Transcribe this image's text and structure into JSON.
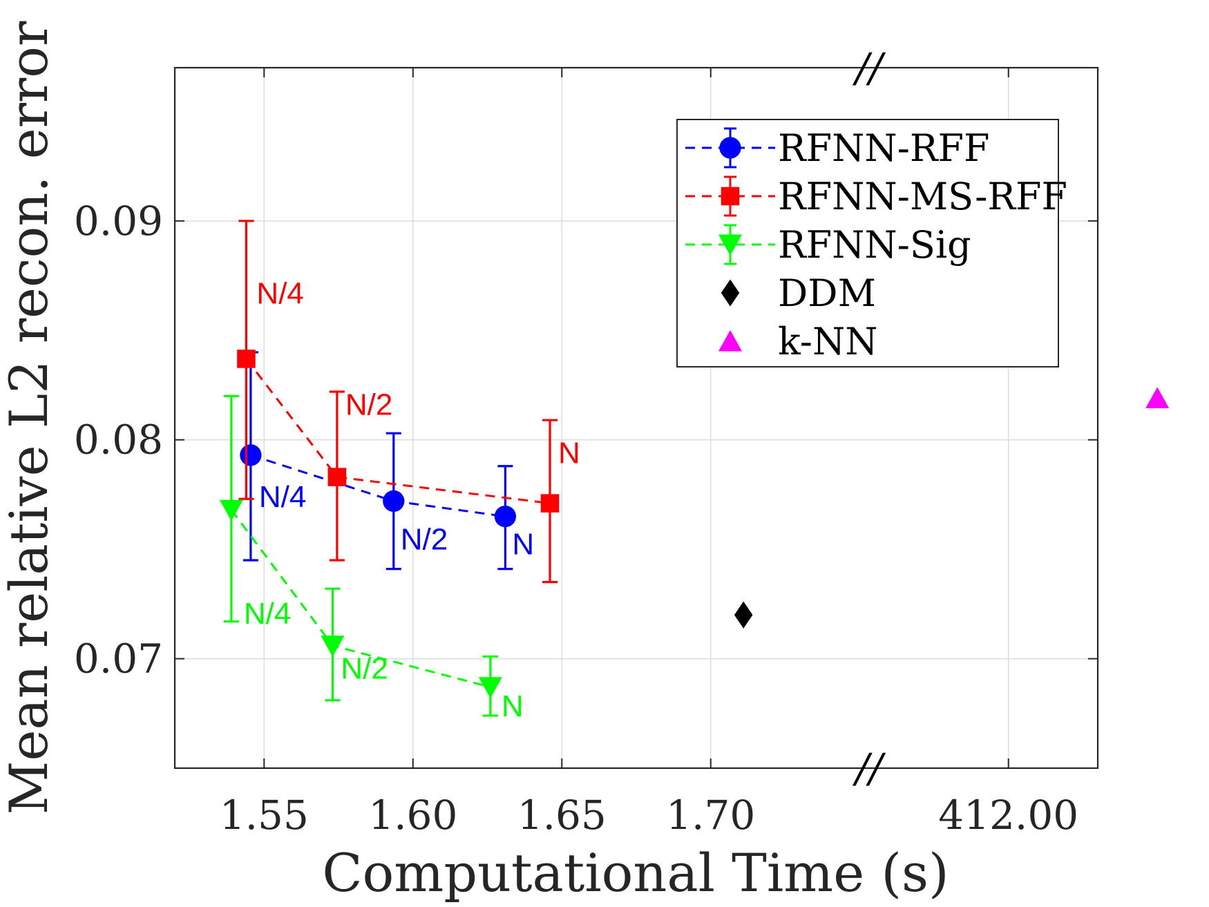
{
  "chart_data": {
    "type": "scatter",
    "xlabel": "Computational Time (s)",
    "ylabel": "Mean relative L2 recon. error",
    "xticks": [
      "1.55",
      "1.60",
      "1.65",
      "1.70",
      "412.00"
    ],
    "yticks": [
      "0.07",
      "0.08",
      "0.09"
    ],
    "xlim": [
      1.52,
      1.83
    ],
    "ylim": [
      0.065,
      0.097
    ],
    "axis_break": "//",
    "grid": true,
    "legend_position": "top-right",
    "series": [
      {
        "name": "RFNN-RFF",
        "color": "#0000ff",
        "marker": "circle",
        "line": "dashed",
        "errorbars": true,
        "points": [
          {
            "x": 1.5455,
            "y": 0.0793,
            "low": 0.0745,
            "high": 0.084,
            "label": "N/4"
          },
          {
            "x": 1.5935,
            "y": 0.0772,
            "low": 0.0741,
            "high": 0.0803,
            "label": "N/2"
          },
          {
            "x": 1.631,
            "y": 0.0765,
            "low": 0.0741,
            "high": 0.0788,
            "label": "N"
          }
        ]
      },
      {
        "name": "RFNN-MS-RFF",
        "color": "#ff0000",
        "marker": "square",
        "line": "dashed",
        "errorbars": true,
        "points": [
          {
            "x": 1.544,
            "y": 0.0837,
            "low": 0.0773,
            "high": 0.09,
            "label": "N/4"
          },
          {
            "x": 1.5745,
            "y": 0.0783,
            "low": 0.0745,
            "high": 0.0822,
            "label": "N/2"
          },
          {
            "x": 1.646,
            "y": 0.0771,
            "low": 0.0735,
            "high": 0.0809,
            "label": "N"
          }
        ]
      },
      {
        "name": "RFNN-Sig",
        "color": "#00ff00",
        "marker": "triangle-down",
        "line": "dashed",
        "errorbars": true,
        "points": [
          {
            "x": 1.539,
            "y": 0.0768,
            "low": 0.0717,
            "high": 0.082,
            "label": "N/4"
          },
          {
            "x": 1.573,
            "y": 0.0706,
            "low": 0.0681,
            "high": 0.0732,
            "label": "N/2"
          },
          {
            "x": 1.626,
            "y": 0.0687,
            "low": 0.0674,
            "high": 0.0701,
            "label": "N"
          }
        ]
      },
      {
        "name": "DDM",
        "color": "#000000",
        "marker": "diamond",
        "line": "none",
        "errorbars": false,
        "points": [
          {
            "x": 1.711,
            "y": 0.072,
            "label": ""
          }
        ]
      },
      {
        "name": "k-NN",
        "color": "#ff00ff",
        "marker": "triangle-up",
        "line": "none",
        "errorbars": false,
        "points": [
          {
            "x": 412.05,
            "y": 0.0819,
            "label": ""
          }
        ]
      }
    ]
  }
}
